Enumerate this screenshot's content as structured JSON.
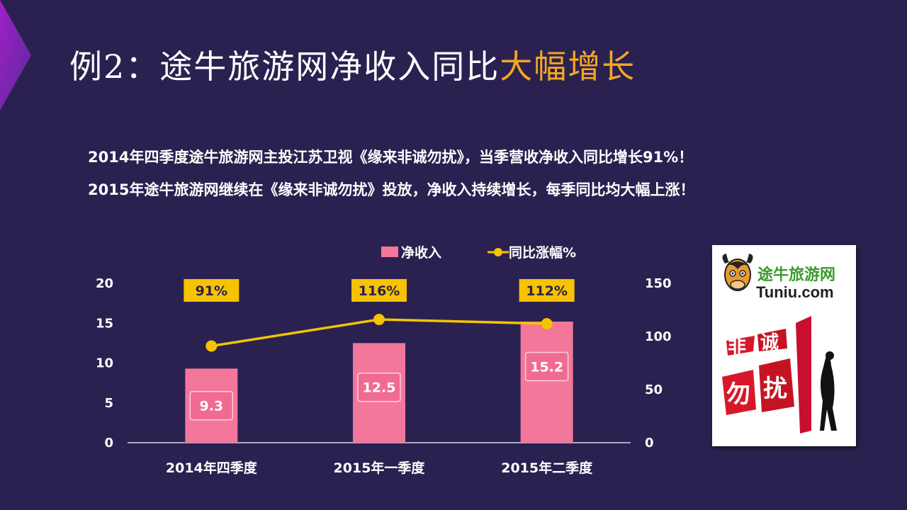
{
  "slide": {
    "title_main": "例2：途牛旅游网净收入同比",
    "title_highlight": "大幅增长",
    "line1": "2014年四季度途牛旅游网主投江苏卫视《缘来非诚勿扰》，当季营收净收入同比增长91%！",
    "line2": "2015年途牛旅游网继续在《缘来非诚勿扰》投放，净收入持续增长，每季同比均大幅上涨！",
    "accent_color": "#f5a623",
    "background_color": "#2a2150"
  },
  "logo": {
    "cn_text": "途牛旅游网",
    "en_text": "Tuniu.com",
    "show_logo_text": "非诚勿扰"
  },
  "chart_data": {
    "type": "bar",
    "categories": [
      "2014年四季度",
      "2015年一季度",
      "2015年二季度"
    ],
    "series": [
      {
        "name": "净收入",
        "type": "bar",
        "axis": "left",
        "values": [
          9.3,
          12.5,
          15.2
        ],
        "labels": [
          "9.3",
          "12.5",
          "15.2"
        ],
        "color": "#f2779b"
      },
      {
        "name": "同比涨幅%",
        "type": "line",
        "axis": "right",
        "values": [
          91,
          116,
          112
        ],
        "labels": [
          "91%",
          "116%",
          "112%"
        ],
        "color": "#f5c400"
      }
    ],
    "ylim_left": [
      0,
      20
    ],
    "yticks_left": [
      "0",
      "5",
      "10",
      "15",
      "20"
    ],
    "ylim_right": [
      0,
      150
    ],
    "yticks_right": [
      "0",
      "50",
      "100",
      "150"
    ],
    "legend_position": "top",
    "grid": false
  }
}
